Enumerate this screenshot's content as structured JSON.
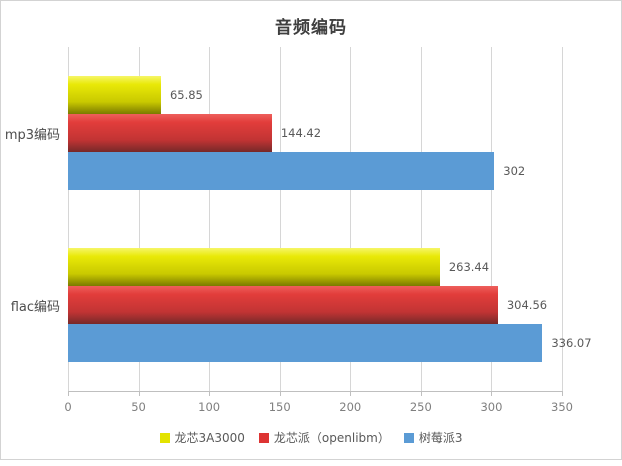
{
  "title": "音频编码",
  "chart_data": {
    "type": "bar",
    "orientation": "horizontal",
    "title": "音频编码",
    "categories": [
      "mp3编码",
      "flac编码"
    ],
    "series": [
      {
        "name": "龙芯3A3000",
        "values": [
          65.85,
          263.44
        ],
        "labels": [
          "65.85",
          "263.44"
        ],
        "color": "#e3e300",
        "gradient": [
          "#f6f668",
          "#e9e907",
          "#c9c900",
          "#7a7a00"
        ]
      },
      {
        "name": "龙芯派（openlibm）",
        "values": [
          144.42,
          304.56
        ],
        "labels": [
          "144.42",
          "304.56"
        ],
        "color": "#dd3433",
        "gradient": [
          "#ee5f5c",
          "#e23d3b",
          "#c23434",
          "#762929"
        ]
      },
      {
        "name": "树莓派3",
        "values": [
          302,
          336.07
        ],
        "labels": [
          "302",
          "336.07"
        ],
        "color": "#5b9bd5",
        "gradient": [
          "#5b9bd5"
        ]
      }
    ],
    "xlim": [
      0,
      350
    ],
    "xticks": [
      0,
      50,
      100,
      150,
      200,
      250,
      300,
      350
    ],
    "grid": true,
    "legend_position": "bottom",
    "axis_color": "#bfbfbf",
    "gridline_color": "#d6d6d6"
  }
}
